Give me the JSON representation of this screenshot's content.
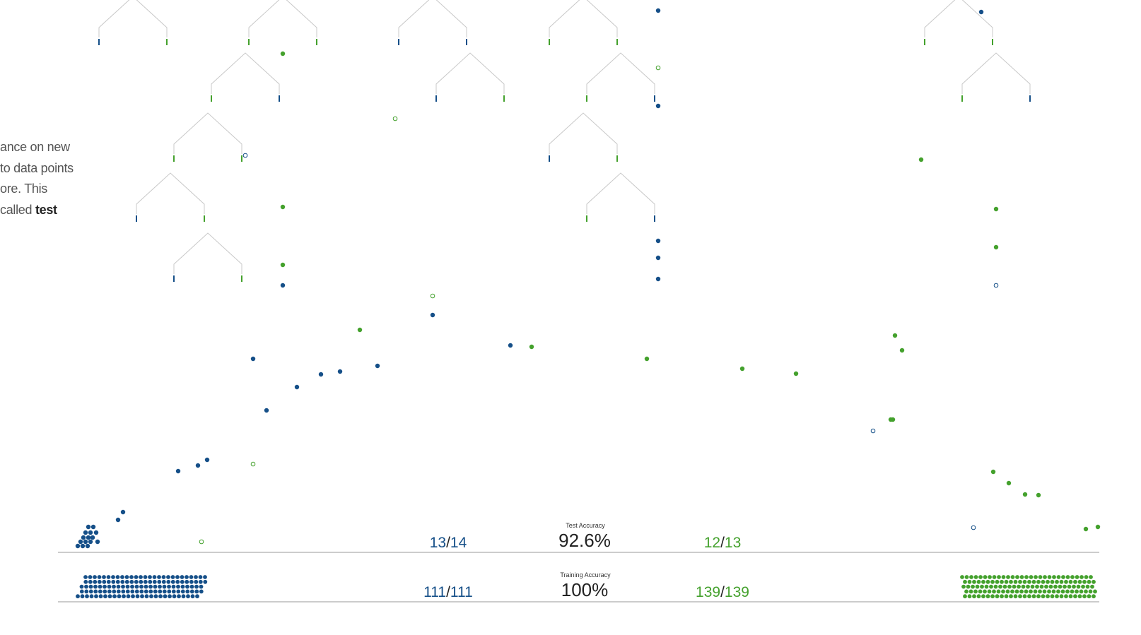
{
  "colors": {
    "blue": "#154f88",
    "green": "#44a12d",
    "tree": "#c8c8c8",
    "axis": "#999999",
    "text": "#222222"
  },
  "narrative": {
    "line1": "ance on new",
    "line2": "to data points",
    "line3": "ore. This",
    "line4_prefix": "called ",
    "line4_bold": "test"
  },
  "test": {
    "title": "Test Accuracy",
    "accuracy": "92.6%",
    "left_num": "13",
    "left_den": "14",
    "right_num": "12",
    "right_den": "13",
    "slash": "/"
  },
  "train": {
    "title": "Training Accuracy",
    "accuracy": "100%",
    "left_num": "111",
    "left_den": "111",
    "right_num": "139",
    "right_den": "139",
    "slash": "/"
  },
  "trees": [
    {
      "cx": 188,
      "top": -5,
      "left": "blue",
      "right": "green"
    },
    {
      "cx": 400,
      "top": -5,
      "left": "green",
      "right": "green"
    },
    {
      "cx": 612,
      "top": -5,
      "left": "blue",
      "right": "blue"
    },
    {
      "cx": 825,
      "top": -5,
      "left": "green",
      "right": "green"
    },
    {
      "cx": 1356,
      "top": -5,
      "left": "green",
      "right": "green"
    },
    {
      "cx": 347,
      "top": 75,
      "left": "green",
      "right": "blue"
    },
    {
      "cx": 665,
      "top": 75,
      "left": "blue",
      "right": "green"
    },
    {
      "cx": 878,
      "top": 75,
      "left": "green",
      "right": "blue"
    },
    {
      "cx": 1409,
      "top": 75,
      "left": "green",
      "right": "blue"
    },
    {
      "cx": 294,
      "top": 160,
      "left": "green",
      "right": "green"
    },
    {
      "cx": 825,
      "top": 160,
      "left": "blue",
      "right": "green"
    },
    {
      "cx": 241,
      "top": 245,
      "left": "blue",
      "right": "green"
    },
    {
      "cx": 878,
      "top": 245,
      "left": "green",
      "right": "blue"
    },
    {
      "cx": 294,
      "top": 330,
      "left": "blue",
      "right": "green"
    }
  ],
  "points": [
    [
      931,
      15,
      "blue",
      1
    ],
    [
      1388,
      17,
      "blue",
      1
    ],
    [
      400,
      76,
      "green",
      1
    ],
    [
      931,
      96,
      "green",
      0
    ],
    [
      931,
      150,
      "blue",
      1
    ],
    [
      559,
      168,
      "green",
      0
    ],
    [
      347,
      220,
      "blue",
      0
    ],
    [
      1303,
      226,
      "green",
      1
    ],
    [
      400,
      293,
      "green",
      1
    ],
    [
      1409,
      296,
      "green",
      1
    ],
    [
      931,
      341,
      "blue",
      1
    ],
    [
      1409,
      350,
      "green",
      1
    ],
    [
      931,
      365,
      "blue",
      1
    ],
    [
      400,
      375,
      "green",
      1
    ],
    [
      931,
      395,
      "blue",
      1
    ],
    [
      400,
      404,
      "blue",
      1
    ],
    [
      1409,
      404,
      "blue",
      0
    ],
    [
      612,
      419,
      "green",
      0
    ],
    [
      612,
      446,
      "blue",
      1
    ],
    [
      509,
      467,
      "green",
      1
    ],
    [
      1266,
      475,
      "green",
      1
    ],
    [
      722,
      489,
      "blue",
      1
    ],
    [
      752,
      491,
      "green",
      1
    ],
    [
      1276,
      496,
      "green",
      1
    ],
    [
      358,
      508,
      "blue",
      1
    ],
    [
      915,
      508,
      "green",
      1
    ],
    [
      534,
      518,
      "blue",
      1
    ],
    [
      1050,
      522,
      "green",
      1
    ],
    [
      481,
      526,
      "blue",
      1
    ],
    [
      454,
      530,
      "blue",
      1
    ],
    [
      1126,
      529,
      "green",
      1
    ],
    [
      420,
      548,
      "blue",
      1
    ],
    [
      377,
      581,
      "blue",
      1
    ],
    [
      1260,
      594,
      "green",
      1
    ],
    [
      1263,
      594,
      "green",
      1
    ],
    [
      1235,
      610,
      "blue",
      0
    ],
    [
      293,
      651,
      "blue",
      1
    ],
    [
      358,
      657,
      "green",
      0
    ],
    [
      280,
      659,
      "blue",
      1
    ],
    [
      252,
      667,
      "blue",
      1
    ],
    [
      1405,
      668,
      "green",
      1
    ],
    [
      1427,
      684,
      "green",
      1
    ],
    [
      1450,
      700,
      "green",
      1
    ],
    [
      1469,
      701,
      "green",
      1
    ],
    [
      174,
      725,
      "blue",
      1
    ],
    [
      167,
      736,
      "blue",
      1
    ],
    [
      1377,
      747,
      "blue",
      0
    ],
    [
      1536,
      749,
      "green",
      1
    ],
    [
      1553,
      746,
      "green",
      1
    ],
    [
      285,
      767,
      "green",
      0
    ],
    [
      125,
      746,
      "blue",
      1
    ],
    [
      132,
      746,
      "blue",
      1
    ],
    [
      121,
      754,
      "blue",
      1
    ],
    [
      128,
      754,
      "blue",
      1
    ],
    [
      136,
      754,
      "blue",
      1
    ],
    [
      118,
      761,
      "blue",
      1
    ],
    [
      125,
      761,
      "blue",
      1
    ],
    [
      131,
      761,
      "blue",
      1
    ],
    [
      138,
      767,
      "blue",
      1
    ],
    [
      114,
      767,
      "blue",
      1
    ],
    [
      121,
      767,
      "blue",
      1
    ],
    [
      128,
      767,
      "blue",
      1
    ],
    [
      110,
      773,
      "blue",
      1
    ],
    [
      117,
      773,
      "blue",
      1
    ],
    [
      124,
      773,
      "blue",
      1
    ]
  ]
}
